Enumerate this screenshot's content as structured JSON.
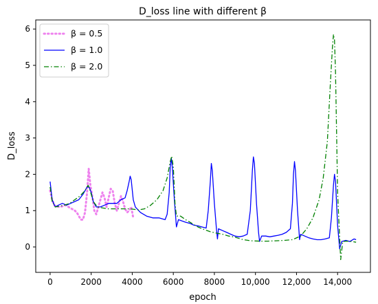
{
  "chart_data": {
    "type": "line",
    "title": "D_loss line with different β",
    "xlabel": "epoch",
    "ylabel": "D_loss",
    "xlim": [
      -700,
      15600
    ],
    "ylim": [
      -0.7,
      6.25
    ],
    "x_ticks": [
      0,
      2000,
      4000,
      6000,
      8000,
      10000,
      12000,
      14000
    ],
    "x_tick_labels": [
      "0",
      "2000",
      "4000",
      "6000",
      "8000",
      "10,000",
      "12,000",
      "14,000"
    ],
    "y_ticks": [
      0,
      1,
      2,
      3,
      4,
      5,
      6
    ],
    "y_tick_labels": [
      "0",
      "1",
      "2",
      "3",
      "4",
      "5",
      "6"
    ],
    "grid": false,
    "legend_position": "top-left",
    "series": [
      {
        "name": "β = 0.5",
        "color": "#ee82ee",
        "style": "dotted",
        "points": [
          [
            0,
            1.55
          ],
          [
            100,
            1.3
          ],
          [
            200,
            1.15
          ],
          [
            300,
            1.12
          ],
          [
            450,
            1.1
          ],
          [
            600,
            1.12
          ],
          [
            750,
            1.15
          ],
          [
            900,
            1.1
          ],
          [
            1050,
            1.05
          ],
          [
            1200,
            1.0
          ],
          [
            1300,
            0.95
          ],
          [
            1400,
            0.85
          ],
          [
            1500,
            0.75
          ],
          [
            1600,
            0.75
          ],
          [
            1700,
            0.95
          ],
          [
            1800,
            1.5
          ],
          [
            1880,
            2.15
          ],
          [
            1960,
            1.7
          ],
          [
            2080,
            1.3
          ],
          [
            2150,
            1.0
          ],
          [
            2250,
            0.9
          ],
          [
            2350,
            1.1
          ],
          [
            2450,
            1.3
          ],
          [
            2550,
            1.5
          ],
          [
            2650,
            1.35
          ],
          [
            2750,
            1.1
          ],
          [
            2850,
            1.35
          ],
          [
            2950,
            1.6
          ],
          [
            3050,
            1.55
          ],
          [
            3150,
            1.2
          ],
          [
            3250,
            1.0
          ],
          [
            3350,
            1.2
          ],
          [
            3450,
            1.4
          ],
          [
            3550,
            1.25
          ],
          [
            3650,
            1.05
          ],
          [
            3750,
            0.95
          ],
          [
            3850,
            1.0
          ],
          [
            3950,
            1.1
          ],
          [
            4050,
            0.8
          ]
        ]
      },
      {
        "name": "β = 1.0",
        "color": "#0000ff",
        "style": "solid",
        "points": [
          [
            0,
            1.8
          ],
          [
            100,
            1.3
          ],
          [
            250,
            1.1
          ],
          [
            400,
            1.15
          ],
          [
            600,
            1.2
          ],
          [
            800,
            1.15
          ],
          [
            1000,
            1.2
          ],
          [
            1200,
            1.25
          ],
          [
            1400,
            1.3
          ],
          [
            1600,
            1.45
          ],
          [
            1800,
            1.65
          ],
          [
            1900,
            1.65
          ],
          [
            2000,
            1.5
          ],
          [
            2100,
            1.25
          ],
          [
            2250,
            1.1
          ],
          [
            2450,
            1.1
          ],
          [
            2650,
            1.15
          ],
          [
            2850,
            1.2
          ],
          [
            3050,
            1.2
          ],
          [
            3250,
            1.2
          ],
          [
            3450,
            1.3
          ],
          [
            3650,
            1.35
          ],
          [
            3750,
            1.55
          ],
          [
            3850,
            1.8
          ],
          [
            3900,
            1.95
          ],
          [
            3950,
            1.85
          ],
          [
            4050,
            1.3
          ],
          [
            4150,
            1.1
          ],
          [
            4400,
            0.95
          ],
          [
            4700,
            0.85
          ],
          [
            5000,
            0.8
          ],
          [
            5300,
            0.8
          ],
          [
            5600,
            0.75
          ],
          [
            5700,
            0.9
          ],
          [
            5800,
            1.5
          ],
          [
            5850,
            2.2
          ],
          [
            5900,
            2.45
          ],
          [
            5950,
            2.2
          ],
          [
            6050,
            1.3
          ],
          [
            6150,
            0.55
          ],
          [
            6250,
            0.75
          ],
          [
            6400,
            0.72
          ],
          [
            6600,
            0.68
          ],
          [
            6800,
            0.65
          ],
          [
            7000,
            0.6
          ],
          [
            7200,
            0.58
          ],
          [
            7400,
            0.55
          ],
          [
            7600,
            0.52
          ],
          [
            7700,
            1.0
          ],
          [
            7800,
            1.8
          ],
          [
            7850,
            2.3
          ],
          [
            7900,
            2.1
          ],
          [
            8000,
            1.2
          ],
          [
            8100,
            0.5
          ],
          [
            8150,
            0.22
          ],
          [
            8200,
            0.5
          ],
          [
            8400,
            0.45
          ],
          [
            8600,
            0.4
          ],
          [
            8800,
            0.35
          ],
          [
            9000,
            0.3
          ],
          [
            9200,
            0.28
          ],
          [
            9400,
            0.3
          ],
          [
            9600,
            0.35
          ],
          [
            9750,
            1.0
          ],
          [
            9850,
            2.1
          ],
          [
            9900,
            2.48
          ],
          [
            9950,
            2.3
          ],
          [
            10050,
            1.2
          ],
          [
            10150,
            0.4
          ],
          [
            10200,
            0.15
          ],
          [
            10300,
            0.3
          ],
          [
            10500,
            0.3
          ],
          [
            10700,
            0.28
          ],
          [
            10900,
            0.3
          ],
          [
            11100,
            0.32
          ],
          [
            11300,
            0.35
          ],
          [
            11500,
            0.4
          ],
          [
            11700,
            0.5
          ],
          [
            11800,
            1.2
          ],
          [
            11850,
            2.0
          ],
          [
            11900,
            2.35
          ],
          [
            11950,
            2.1
          ],
          [
            12050,
            1.0
          ],
          [
            12150,
            0.2
          ],
          [
            12200,
            0.35
          ],
          [
            12400,
            0.3
          ],
          [
            12600,
            0.25
          ],
          [
            12800,
            0.22
          ],
          [
            13000,
            0.2
          ],
          [
            13200,
            0.2
          ],
          [
            13400,
            0.22
          ],
          [
            13600,
            0.25
          ],
          [
            13700,
            0.8
          ],
          [
            13800,
            1.7
          ],
          [
            13850,
            2.0
          ],
          [
            13900,
            1.8
          ],
          [
            14000,
            0.6
          ],
          [
            14100,
            -0.05
          ],
          [
            14200,
            0.15
          ],
          [
            14400,
            0.18
          ],
          [
            14600,
            0.15
          ],
          [
            14800,
            0.22
          ],
          [
            14900,
            0.2
          ]
        ]
      },
      {
        "name": "β = 2.0",
        "color": "#008000",
        "style": "dashdot",
        "points": [
          [
            0,
            1.65
          ],
          [
            100,
            1.25
          ],
          [
            250,
            1.1
          ],
          [
            450,
            1.12
          ],
          [
            700,
            1.15
          ],
          [
            950,
            1.2
          ],
          [
            1200,
            1.3
          ],
          [
            1450,
            1.4
          ],
          [
            1700,
            1.55
          ],
          [
            1850,
            1.7
          ],
          [
            1950,
            1.55
          ],
          [
            2100,
            1.25
          ],
          [
            2300,
            1.1
          ],
          [
            2500,
            1.08
          ],
          [
            2800,
            1.05
          ],
          [
            3100,
            1.05
          ],
          [
            3500,
            1.05
          ],
          [
            3900,
            1.05
          ],
          [
            4300,
            1.02
          ],
          [
            4600,
            1.05
          ],
          [
            4900,
            1.15
          ],
          [
            5200,
            1.3
          ],
          [
            5500,
            1.55
          ],
          [
            5700,
            1.9
          ],
          [
            5850,
            2.35
          ],
          [
            5920,
            2.5
          ],
          [
            6000,
            2.2
          ],
          [
            6080,
            1.2
          ],
          [
            6150,
            0.85
          ],
          [
            6350,
            0.85
          ],
          [
            6600,
            0.75
          ],
          [
            6900,
            0.65
          ],
          [
            7200,
            0.55
          ],
          [
            7500,
            0.48
          ],
          [
            7800,
            0.42
          ],
          [
            8100,
            0.38
          ],
          [
            8400,
            0.35
          ],
          [
            8700,
            0.3
          ],
          [
            9000,
            0.27
          ],
          [
            9400,
            0.2
          ],
          [
            9800,
            0.17
          ],
          [
            10200,
            0.16
          ],
          [
            10600,
            0.16
          ],
          [
            11000,
            0.17
          ],
          [
            11400,
            0.18
          ],
          [
            11800,
            0.2
          ],
          [
            12200,
            0.3
          ],
          [
            12500,
            0.5
          ],
          [
            12800,
            0.8
          ],
          [
            13100,
            1.3
          ],
          [
            13300,
            1.9
          ],
          [
            13500,
            2.9
          ],
          [
            13650,
            4.5
          ],
          [
            13750,
            5.5
          ],
          [
            13800,
            5.85
          ],
          [
            13850,
            5.7
          ],
          [
            13900,
            4.8
          ],
          [
            13950,
            3.2
          ],
          [
            14000,
            1.5
          ],
          [
            14080,
            0.5
          ],
          [
            14150,
            -0.35
          ],
          [
            14250,
            0.15
          ],
          [
            14450,
            0.16
          ],
          [
            14700,
            0.15
          ],
          [
            14900,
            0.13
          ]
        ]
      }
    ]
  }
}
